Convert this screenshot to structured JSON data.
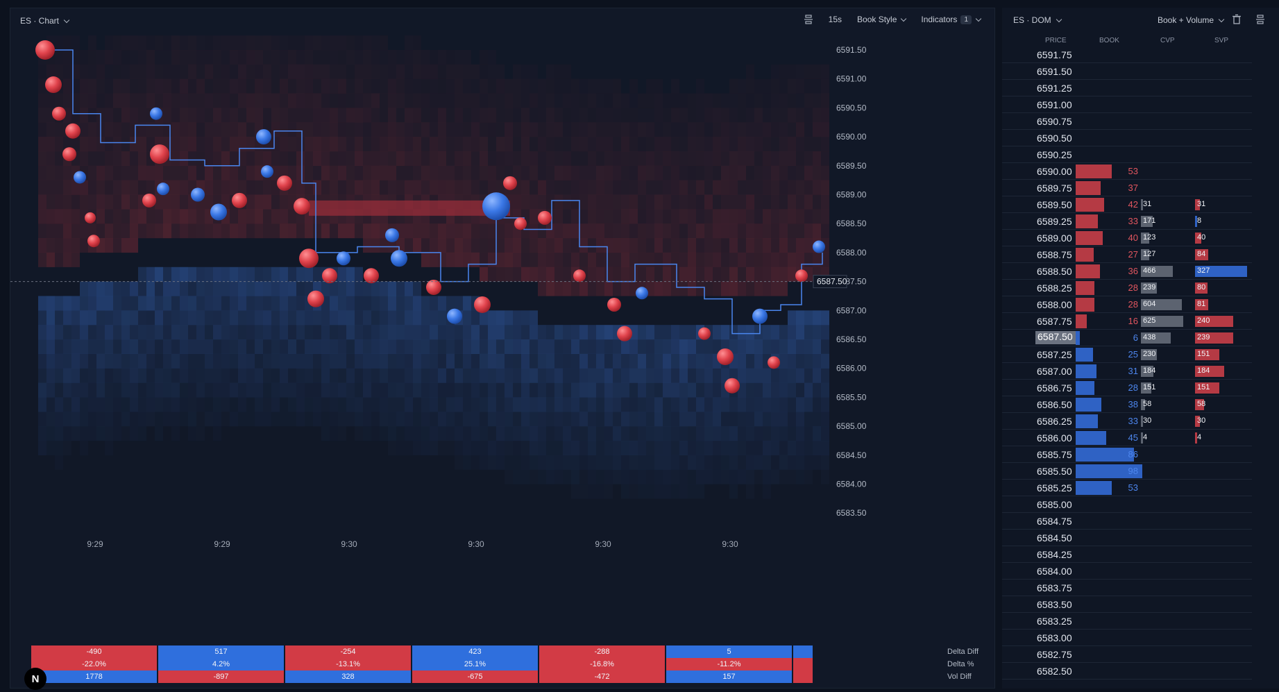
{
  "chart": {
    "title": "ES · Chart",
    "timeframe": "15s",
    "book_style": "Book Style",
    "indicators_label": "Indicators",
    "indicators_count": "1",
    "price_labels": [
      "6591.50",
      "6591.00",
      "6590.50",
      "6590.00",
      "6589.50",
      "6589.00",
      "6588.50",
      "6588.00",
      "6587.50",
      "6587.00",
      "6586.50",
      "6586.00",
      "6585.50",
      "6585.00",
      "6584.50",
      "6584.00",
      "6583.50"
    ],
    "current_price": "6587.50",
    "time_labels": [
      "9:29",
      "9:29",
      "9:30",
      "9:30",
      "9:30",
      "9:30"
    ],
    "stats": {
      "labels": [
        "Delta Diff",
        "Delta %",
        "Vol Diff"
      ],
      "rows": [
        [
          "-490",
          "517",
          "-254",
          "423",
          "-288",
          "5",
          ""
        ],
        [
          "-22.0%",
          "4.2%",
          "-13.1%",
          "25.1%",
          "-16.8%",
          "-11.2%",
          ""
        ],
        [
          "1778",
          "-897",
          "328",
          "-675",
          "-472",
          "157",
          ""
        ]
      ],
      "colors": [
        [
          "red",
          "blue",
          "red",
          "blue",
          "red",
          "blue",
          "blue"
        ],
        [
          "red",
          "blue",
          "red",
          "blue",
          "red",
          "red",
          "red"
        ],
        [
          "blue",
          "red",
          "blue",
          "red",
          "red",
          "blue",
          "red"
        ]
      ]
    },
    "colors": {
      "ask": "#d23b45",
      "bid": "#2f6fdd",
      "background": "#111827"
    }
  },
  "dom": {
    "title": "ES · DOM",
    "mode": "Book + Volume",
    "columns": [
      "PRICE",
      "BOOK",
      "CVP",
      "SVP"
    ],
    "rows": [
      {
        "price": "6591.75",
        "book": "",
        "side": "",
        "cvp": "",
        "svp": "",
        "svp_side": ""
      },
      {
        "price": "6591.50",
        "book": "",
        "side": "",
        "cvp": "",
        "svp": "",
        "svp_side": ""
      },
      {
        "price": "6591.25",
        "book": "",
        "side": "",
        "cvp": "",
        "svp": "",
        "svp_side": ""
      },
      {
        "price": "6591.00",
        "book": "",
        "side": "",
        "cvp": "",
        "svp": "",
        "svp_side": ""
      },
      {
        "price": "6590.75",
        "book": "",
        "side": "",
        "cvp": "",
        "svp": "",
        "svp_side": ""
      },
      {
        "price": "6590.50",
        "book": "",
        "side": "",
        "cvp": "",
        "svp": "",
        "svp_side": ""
      },
      {
        "price": "6590.25",
        "book": "",
        "side": "",
        "cvp": "",
        "svp": "",
        "svp_side": ""
      },
      {
        "price": "6590.00",
        "book": "53",
        "side": "ask",
        "cvp": "",
        "svp": "",
        "svp_side": ""
      },
      {
        "price": "6589.75",
        "book": "37",
        "side": "ask",
        "cvp": "",
        "svp": "",
        "svp_side": ""
      },
      {
        "price": "6589.50",
        "book": "42",
        "side": "ask",
        "cvp": "31",
        "svp": "31",
        "svp_side": "ask"
      },
      {
        "price": "6589.25",
        "book": "33",
        "side": "ask",
        "cvp": "171",
        "svp": "8",
        "svp_side": "bid"
      },
      {
        "price": "6589.00",
        "book": "40",
        "side": "ask",
        "cvp": "123",
        "svp": "40",
        "svp_side": "ask"
      },
      {
        "price": "6588.75",
        "book": "27",
        "side": "ask",
        "cvp": "127",
        "svp": "84",
        "svp_side": "ask"
      },
      {
        "price": "6588.50",
        "book": "36",
        "side": "ask",
        "cvp": "466",
        "svp": "327",
        "svp_side": "bid"
      },
      {
        "price": "6588.25",
        "book": "28",
        "side": "ask",
        "cvp": "239",
        "svp": "80",
        "svp_side": "ask"
      },
      {
        "price": "6588.00",
        "book": "28",
        "side": "ask",
        "cvp": "604",
        "svp": "81",
        "svp_side": "ask"
      },
      {
        "price": "6587.75",
        "book": "16",
        "side": "ask",
        "cvp": "625",
        "svp": "240",
        "svp_side": "ask"
      },
      {
        "price": "6587.50",
        "book": "6",
        "side": "bid",
        "cvp": "438",
        "svp": "239",
        "svp_side": "ask",
        "current": true
      },
      {
        "price": "6587.25",
        "book": "25",
        "side": "bid",
        "cvp": "230",
        "svp": "151",
        "svp_side": "ask"
      },
      {
        "price": "6587.00",
        "book": "31",
        "side": "bid",
        "cvp": "184",
        "svp": "184",
        "svp_side": "ask"
      },
      {
        "price": "6586.75",
        "book": "28",
        "side": "bid",
        "cvp": "151",
        "svp": "151",
        "svp_side": "ask"
      },
      {
        "price": "6586.50",
        "book": "38",
        "side": "bid",
        "cvp": "58",
        "svp": "58",
        "svp_side": "ask"
      },
      {
        "price": "6586.25",
        "book": "33",
        "side": "bid",
        "cvp": "30",
        "svp": "30",
        "svp_side": "ask"
      },
      {
        "price": "6586.00",
        "book": "45",
        "side": "bid",
        "cvp": "4",
        "svp": "4",
        "svp_side": "ask"
      },
      {
        "price": "6585.75",
        "book": "86",
        "side": "bid",
        "cvp": "",
        "svp": "",
        "svp_side": ""
      },
      {
        "price": "6585.50",
        "book": "98",
        "side": "bid",
        "cvp": "",
        "svp": "",
        "svp_side": ""
      },
      {
        "price": "6585.25",
        "book": "53",
        "side": "bid",
        "cvp": "",
        "svp": "",
        "svp_side": ""
      },
      {
        "price": "6585.00",
        "book": "",
        "side": "",
        "cvp": "",
        "svp": "",
        "svp_side": ""
      },
      {
        "price": "6584.75",
        "book": "",
        "side": "",
        "cvp": "",
        "svp": "",
        "svp_side": ""
      },
      {
        "price": "6584.50",
        "book": "",
        "side": "",
        "cvp": "",
        "svp": "",
        "svp_side": ""
      },
      {
        "price": "6584.25",
        "book": "",
        "side": "",
        "cvp": "",
        "svp": "",
        "svp_side": ""
      },
      {
        "price": "6584.00",
        "book": "",
        "side": "",
        "cvp": "",
        "svp": "",
        "svp_side": ""
      },
      {
        "price": "6583.75",
        "book": "",
        "side": "",
        "cvp": "",
        "svp": "",
        "svp_side": ""
      },
      {
        "price": "6583.50",
        "book": "",
        "side": "",
        "cvp": "",
        "svp": "",
        "svp_side": ""
      },
      {
        "price": "6583.25",
        "book": "",
        "side": "",
        "cvp": "",
        "svp": "",
        "svp_side": ""
      },
      {
        "price": "6583.00",
        "book": "",
        "side": "",
        "cvp": "",
        "svp": "",
        "svp_side": ""
      },
      {
        "price": "6582.75",
        "book": "",
        "side": "",
        "cvp": "",
        "svp": "",
        "svp_side": ""
      },
      {
        "price": "6582.50",
        "book": "",
        "side": "",
        "cvp": "",
        "svp": "",
        "svp_side": ""
      }
    ]
  },
  "logo_text": "N"
}
